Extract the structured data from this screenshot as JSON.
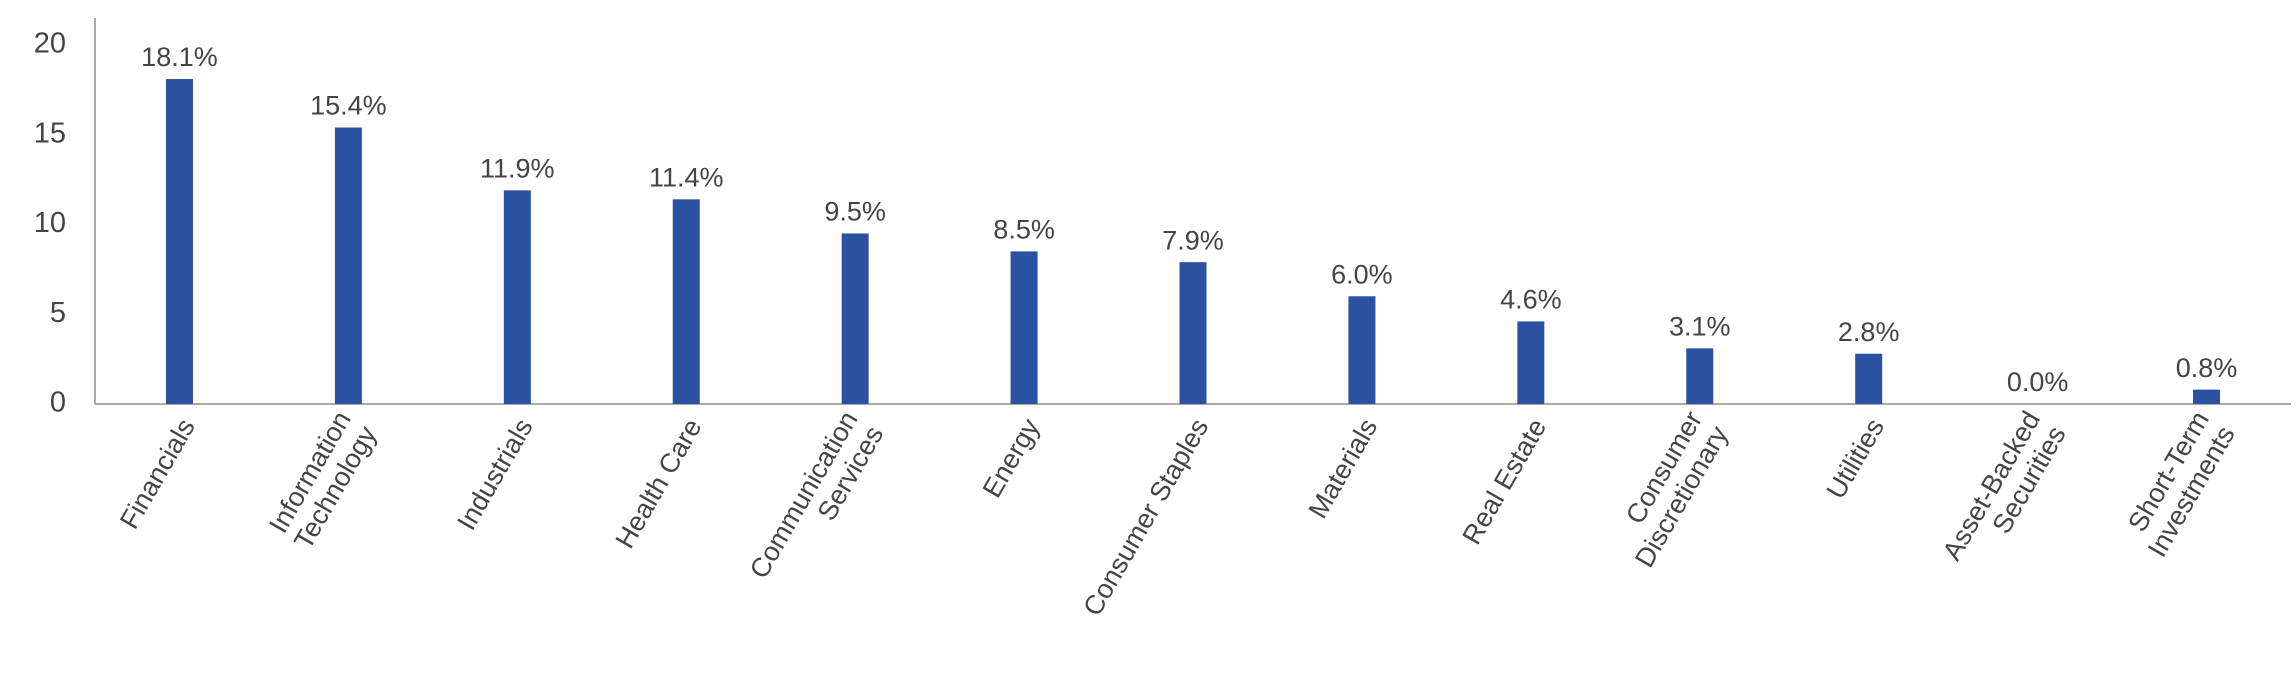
{
  "chart_data": {
    "type": "bar",
    "categories": [
      "Financials",
      "Information\nTechnology",
      "Industrials",
      "Health Care",
      "Communication\nServices",
      "Energy",
      "Consumer Staples",
      "Materials",
      "Real Estate",
      "Consumer\nDiscretionary",
      "Utilities",
      "Asset-Backed\nSecurities",
      "Short-Term\nInvestments"
    ],
    "values": [
      18.1,
      15.4,
      11.9,
      11.4,
      9.5,
      8.5,
      7.9,
      6.0,
      4.6,
      3.1,
      2.8,
      0.0,
      0.8
    ],
    "value_labels": [
      "18.1%",
      "15.4%",
      "11.9%",
      "11.4%",
      "9.5%",
      "8.5%",
      "7.9%",
      "6.0%",
      "4.6%",
      "3.1%",
      "2.8%",
      "0.0%",
      "0.8%"
    ],
    "color": "#2b52a0",
    "ylim": [
      0,
      21.5
    ],
    "yticks": [
      0,
      5,
      10,
      15,
      20
    ],
    "grid": false
  }
}
